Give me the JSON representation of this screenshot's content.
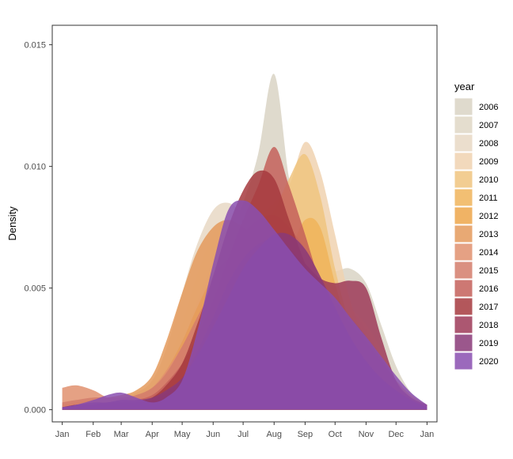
{
  "chart_data": {
    "type": "area",
    "subtype": "density",
    "ylabel": "Density",
    "yticks": [
      "0.000",
      "0.005",
      "0.010",
      "0.015"
    ],
    "ytick_values": [
      0,
      0.005,
      0.01,
      0.015
    ],
    "ylim": [
      -0.0005,
      0.0158
    ],
    "xticks": [
      "Jan",
      "Feb",
      "Mar",
      "Apr",
      "May",
      "Jun",
      "Jul",
      "Aug",
      "Sep",
      "Oct",
      "Nov",
      "Dec",
      "Jan"
    ],
    "xtick_values": [
      1,
      32,
      60,
      91,
      121,
      152,
      182,
      213,
      244,
      274,
      305,
      335,
      366
    ],
    "xlim": [
      -9,
      376
    ],
    "legend_title": "year",
    "legend_position": "right",
    "grid": false,
    "x": [
      1,
      15,
      32,
      46,
      60,
      75,
      91,
      105,
      121,
      136,
      152,
      167,
      182,
      197,
      213,
      228,
      244,
      259,
      274,
      289,
      305,
      320,
      335,
      350,
      366
    ],
    "series": [
      {
        "name": "2006",
        "color": "#d9d4c4",
        "values": [
          0.0001,
          0.0002,
          0.0003,
          0.0004,
          0.0004,
          0.0004,
          0.0006,
          0.0012,
          0.0027,
          0.0045,
          0.006,
          0.0068,
          0.0085,
          0.0105,
          0.0138,
          0.0095,
          0.0068,
          0.0058,
          0.0057,
          0.0058,
          0.0052,
          0.0035,
          0.0018,
          0.0007,
          0.0002
        ]
      },
      {
        "name": "2007",
        "color": "#dfd7c6",
        "values": [
          0.0002,
          0.0002,
          0.0003,
          0.0003,
          0.0004,
          0.0005,
          0.0009,
          0.0018,
          0.0035,
          0.0055,
          0.0072,
          0.008,
          0.0082,
          0.0078,
          0.0072,
          0.0068,
          0.0063,
          0.0055,
          0.0048,
          0.0042,
          0.0033,
          0.0022,
          0.0012,
          0.0005,
          0.0002
        ]
      },
      {
        "name": "2008",
        "color": "#e8d8c4",
        "values": [
          0.0002,
          0.0003,
          0.0004,
          0.0005,
          0.0006,
          0.0007,
          0.0012,
          0.0025,
          0.0048,
          0.0068,
          0.0082,
          0.0085,
          0.008,
          0.0072,
          0.0065,
          0.006,
          0.0056,
          0.0052,
          0.0047,
          0.0042,
          0.0035,
          0.0025,
          0.0014,
          0.0006,
          0.0002
        ]
      },
      {
        "name": "2009",
        "color": "#f0d2b0",
        "values": [
          0.0001,
          0.0002,
          0.0002,
          0.0002,
          0.0003,
          0.0004,
          0.0006,
          0.0011,
          0.0018,
          0.0028,
          0.0038,
          0.0048,
          0.0062,
          0.0078,
          0.0085,
          0.0092,
          0.011,
          0.0098,
          0.0072,
          0.0045,
          0.0028,
          0.0018,
          0.001,
          0.0005,
          0.0001
        ]
      },
      {
        "name": "2010",
        "color": "#f0c47f",
        "values": [
          0.0001,
          0.0002,
          0.0002,
          0.0003,
          0.0003,
          0.0004,
          0.0007,
          0.0013,
          0.0022,
          0.0034,
          0.0046,
          0.0058,
          0.0068,
          0.0076,
          0.0082,
          0.0095,
          0.0105,
          0.0088,
          0.0058,
          0.0035,
          0.0022,
          0.0015,
          0.0009,
          0.0004,
          0.0001
        ]
      },
      {
        "name": "2011",
        "color": "#f0b45a",
        "values": [
          0.0001,
          0.0002,
          0.0002,
          0.0002,
          0.0003,
          0.0004,
          0.0007,
          0.0014,
          0.0025,
          0.0038,
          0.0052,
          0.0062,
          0.0068,
          0.007,
          0.0068,
          0.0066,
          0.0078,
          0.0075,
          0.0052,
          0.0032,
          0.002,
          0.0013,
          0.0008,
          0.0004,
          0.0001
        ]
      },
      {
        "name": "2012",
        "color": "#eda64a",
        "values": [
          0.0001,
          0.0002,
          0.0003,
          0.0003,
          0.0004,
          0.0005,
          0.0008,
          0.0016,
          0.0028,
          0.0042,
          0.0055,
          0.0062,
          0.0065,
          0.0064,
          0.006,
          0.0058,
          0.0056,
          0.0052,
          0.0045,
          0.0036,
          0.0028,
          0.002,
          0.0012,
          0.0006,
          0.0002
        ]
      },
      {
        "name": "2013",
        "color": "#e49a5c",
        "values": [
          0.0002,
          0.0003,
          0.0004,
          0.0005,
          0.0006,
          0.0008,
          0.0014,
          0.0028,
          0.0048,
          0.0065,
          0.0075,
          0.0078,
          0.0075,
          0.007,
          0.0065,
          0.006,
          0.0055,
          0.005,
          0.0045,
          0.0038,
          0.003,
          0.0021,
          0.0012,
          0.0005,
          0.0002
        ]
      },
      {
        "name": "2014",
        "color": "#e0906e",
        "values": [
          0.0009,
          0.001,
          0.0008,
          0.0005,
          0.0004,
          0.0005,
          0.0009,
          0.0016,
          0.0026,
          0.0036,
          0.0046,
          0.0055,
          0.0062,
          0.0064,
          0.0063,
          0.006,
          0.0056,
          0.0048,
          0.0038,
          0.0028,
          0.002,
          0.0014,
          0.0009,
          0.0005,
          0.0002
        ]
      },
      {
        "name": "2015",
        "color": "#d47d6b",
        "values": [
          0.0003,
          0.0004,
          0.0005,
          0.0005,
          0.0005,
          0.0006,
          0.0009,
          0.0015,
          0.0026,
          0.0038,
          0.005,
          0.0062,
          0.0072,
          0.0078,
          0.008,
          0.0075,
          0.0066,
          0.0055,
          0.0043,
          0.0032,
          0.0023,
          0.0016,
          0.001,
          0.0005,
          0.0002
        ]
      },
      {
        "name": "2016",
        "color": "#c4605a",
        "values": [
          0.0001,
          0.0002,
          0.0002,
          0.0002,
          0.0003,
          0.0004,
          0.0006,
          0.0011,
          0.0019,
          0.003,
          0.0045,
          0.0062,
          0.0078,
          0.0092,
          0.0108,
          0.0092,
          0.0072,
          0.0052,
          0.0035,
          0.0024,
          0.0016,
          0.0011,
          0.0007,
          0.0004,
          0.0001
        ]
      },
      {
        "name": "2017",
        "color": "#a63a3e",
        "values": [
          0.0001,
          0.0001,
          0.0002,
          0.0002,
          0.0002,
          0.0003,
          0.0005,
          0.001,
          0.0019,
          0.0035,
          0.0055,
          0.0075,
          0.009,
          0.0098,
          0.0095,
          0.0078,
          0.006,
          0.0045,
          0.0034,
          0.0026,
          0.0019,
          0.0013,
          0.0008,
          0.0004,
          0.0001
        ]
      },
      {
        "name": "2018",
        "color": "#9e3a58",
        "values": [
          0.0001,
          0.0002,
          0.0002,
          0.0003,
          0.0003,
          0.0003,
          0.0004,
          0.0007,
          0.0013,
          0.0024,
          0.0038,
          0.0052,
          0.0062,
          0.0068,
          0.007,
          0.0066,
          0.006,
          0.0054,
          0.0052,
          0.0053,
          0.005,
          0.003,
          0.0012,
          0.0005,
          0.0002
        ]
      },
      {
        "name": "2019",
        "color": "#8a3a78",
        "values": [
          0.0001,
          0.0002,
          0.0003,
          0.0003,
          0.0004,
          0.0004,
          0.0005,
          0.0008,
          0.0013,
          0.0022,
          0.0034,
          0.0046,
          0.0058,
          0.0066,
          0.0072,
          0.0072,
          0.0066,
          0.0055,
          0.0042,
          0.003,
          0.002,
          0.0013,
          0.0008,
          0.0004,
          0.0001
        ]
      },
      {
        "name": "2020",
        "color": "#8a4fb0",
        "values": [
          0.0001,
          0.0002,
          0.0004,
          0.0006,
          0.0007,
          0.0005,
          0.0003,
          0.0005,
          0.0012,
          0.0032,
          0.006,
          0.0082,
          0.0086,
          0.0082,
          0.0074,
          0.0066,
          0.0058,
          0.0052,
          0.0046,
          0.0038,
          0.003,
          0.0022,
          0.0014,
          0.0007,
          0.0002
        ]
      }
    ]
  }
}
